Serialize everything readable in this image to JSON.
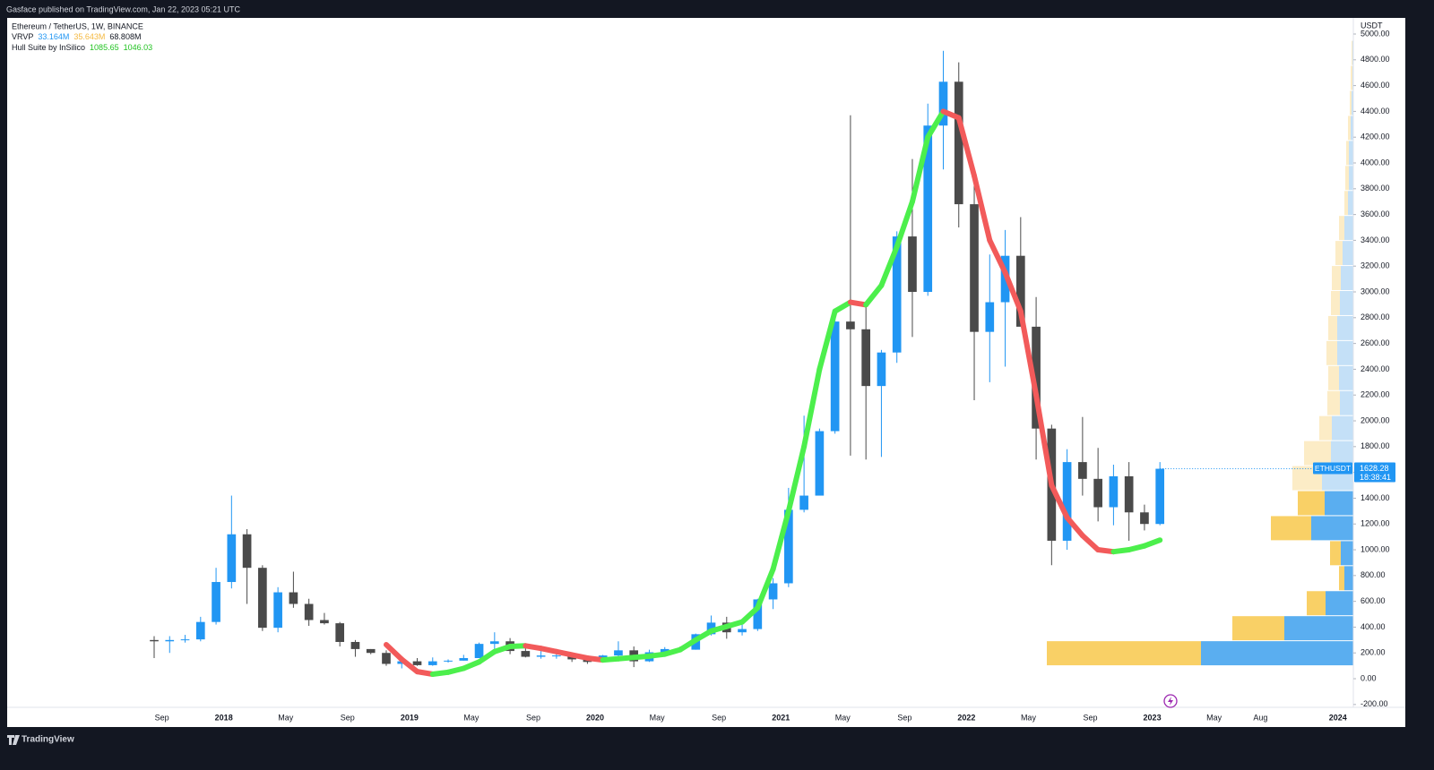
{
  "header": {
    "published": "Gasface published on TradingView.com, Jan 22, 2023 05:21 UTC"
  },
  "footer": {
    "brand": "TradingView"
  },
  "legend": {
    "symbol": "Ethereum / TetherUS, 1W, BINANCE",
    "vrvp": {
      "name": "VRVP",
      "up": "33.164M",
      "down": "35.643M",
      "total": "68.808M"
    },
    "hull": {
      "name": "Hull Suite by InSilico",
      "a": "1085.65",
      "b": "1046.03"
    }
  },
  "chart_data": {
    "type": "candlestick",
    "currency": "USDT",
    "symbol_tag": "ETHUSDT",
    "countdown": "18:38:41",
    "up_color": "#2196f3",
    "down_color": "#4a4a4a",
    "x": [
      "2017-08",
      "2017-09",
      "2017-10",
      "2017-11",
      "2017-12",
      "2018-01",
      "2018-02",
      "2018-03",
      "2018-04",
      "2018-05",
      "2018-06",
      "2018-07",
      "2018-08",
      "2018-09",
      "2018-10",
      "2018-11",
      "2018-12",
      "2019-01",
      "2019-02",
      "2019-03",
      "2019-04",
      "2019-05",
      "2019-06",
      "2019-07",
      "2019-08",
      "2019-09",
      "2019-10",
      "2019-11",
      "2019-12",
      "2020-01",
      "2020-02",
      "2020-03",
      "2020-04",
      "2020-05",
      "2020-06",
      "2020-07",
      "2020-08",
      "2020-09",
      "2020-10",
      "2020-11",
      "2020-12",
      "2021-01",
      "2021-02",
      "2021-03",
      "2021-04",
      "2021-05",
      "2021-06",
      "2021-07",
      "2021-08",
      "2021-09",
      "2021-10",
      "2021-11",
      "2021-12",
      "2022-01",
      "2022-02",
      "2022-03",
      "2022-04",
      "2022-05",
      "2022-06",
      "2022-07",
      "2022-08",
      "2022-09",
      "2022-10",
      "2022-11",
      "2022-12",
      "2023-01"
    ],
    "open": [
      300,
      290,
      300,
      305,
      440,
      750,
      1120,
      860,
      395,
      670,
      580,
      455,
      430,
      285,
      230,
      200,
      115,
      135,
      105,
      135,
      140,
      160,
      270,
      290,
      215,
      170,
      180,
      180,
      150,
      130,
      180,
      220,
      135,
      205,
      230,
      225,
      345,
      435,
      360,
      385,
      615,
      740,
      1310,
      1420,
      1920,
      2770,
      2710,
      2270,
      2530,
      3430,
      3000,
      4290,
      4630,
      3680,
      2690,
      2920,
      3280,
      2730,
      1940,
      1070,
      1680,
      1550,
      1330,
      1570,
      1290,
      1200
    ],
    "high": [
      330,
      330,
      340,
      480,
      860,
      1420,
      1160,
      880,
      710,
      830,
      620,
      510,
      440,
      300,
      230,
      220,
      160,
      160,
      165,
      150,
      185,
      280,
      360,
      315,
      240,
      230,
      200,
      195,
      155,
      185,
      290,
      250,
      225,
      245,
      250,
      350,
      490,
      480,
      420,
      620,
      780,
      1480,
      2040,
      1940,
      2800,
      4370,
      2890,
      2550,
      3470,
      4030,
      4460,
      4870,
      4780,
      3880,
      3290,
      3480,
      3580,
      2960,
      1970,
      1780,
      2030,
      1790,
      1660,
      1680,
      1350,
      1680
    ],
    "low": [
      160,
      200,
      280,
      290,
      420,
      700,
      580,
      370,
      360,
      550,
      410,
      420,
      250,
      170,
      190,
      100,
      80,
      100,
      100,
      125,
      140,
      160,
      230,
      190,
      165,
      155,
      155,
      130,
      115,
      125,
      175,
      90,
      130,
      175,
      215,
      225,
      335,
      310,
      335,
      370,
      540,
      710,
      1290,
      1440,
      1900,
      1730,
      1700,
      1720,
      2450,
      2650,
      2970,
      3950,
      3500,
      2160,
      2300,
      2420,
      2780,
      1700,
      880,
      1000,
      1420,
      1220,
      1190,
      1070,
      1150,
      1190
    ],
    "close": [
      290,
      300,
      305,
      440,
      750,
      1120,
      860,
      395,
      670,
      580,
      455,
      430,
      285,
      230,
      200,
      115,
      135,
      105,
      135,
      140,
      160,
      270,
      290,
      215,
      170,
      180,
      180,
      150,
      130,
      180,
      220,
      135,
      205,
      230,
      225,
      345,
      435,
      360,
      385,
      615,
      740,
      1310,
      1420,
      1920,
      2770,
      2710,
      2270,
      2530,
      3430,
      3000,
      4290,
      4630,
      3680,
      2690,
      2920,
      3280,
      2730,
      1940,
      1070,
      1680,
      1550,
      1330,
      1570,
      1290,
      1200,
      1628.28
    ],
    "hull": {
      "colors": [
        "#4cef4c",
        "#f25a5a"
      ],
      "x": [
        "2018-11",
        "2018-12",
        "2019-01",
        "2019-02",
        "2019-03",
        "2019-04",
        "2019-05",
        "2019-06",
        "2019-07",
        "2019-08",
        "2019-09",
        "2019-10",
        "2019-11",
        "2019-12",
        "2020-01",
        "2020-02",
        "2020-03",
        "2020-04",
        "2020-05",
        "2020-06",
        "2020-07",
        "2020-08",
        "2020-09",
        "2020-10",
        "2020-11",
        "2020-12",
        "2021-01",
        "2021-02",
        "2021-03",
        "2021-04",
        "2021-05",
        "2021-06",
        "2021-07",
        "2021-08",
        "2021-09",
        "2021-10",
        "2021-11",
        "2021-12",
        "2022-01",
        "2022-02",
        "2022-03",
        "2022-04",
        "2022-05",
        "2022-06",
        "2022-07",
        "2022-08",
        "2022-09",
        "2022-10",
        "2022-11",
        "2022-12",
        "2023-01"
      ],
      "values": [
        264,
        150,
        55,
        35,
        50,
        80,
        130,
        210,
        250,
        255,
        235,
        210,
        185,
        160,
        145,
        155,
        165,
        175,
        190,
        225,
        300,
        370,
        405,
        440,
        550,
        850,
        1300,
        1800,
        2400,
        2850,
        2920,
        2900,
        3050,
        3350,
        3700,
        4200,
        4400,
        4350,
        3900,
        3400,
        3150,
        2850,
        2200,
        1500,
        1250,
        1110,
        1000,
        985,
        1000,
        1030,
        1075
      ]
    },
    "volume_profile": {
      "colors": [
        "#5aaef0",
        "#f9d066"
      ],
      "inactive_colors": [
        "#c4e0f7",
        "#fcecc6"
      ],
      "value_area": [
        97,
        1455
      ],
      "bins": [
        97,
        291,
        485,
        679,
        873,
        1067,
        1261,
        1455,
        1649,
        1843,
        2037,
        2231,
        2425,
        2619,
        2813,
        3007,
        3201,
        3395,
        3589,
        3783,
        3977,
        4171,
        4365,
        4559,
        4753,
        4947
      ],
      "up": [
        170,
        77,
        31,
        10,
        14,
        47,
        32,
        35,
        25,
        24,
        15,
        16,
        18,
        18,
        15,
        14,
        12,
        10,
        6,
        5,
        5,
        3,
        2,
        1,
        1
      ],
      "down": [
        172,
        58,
        21,
        6,
        12,
        45,
        30,
        33,
        30,
        14,
        14,
        12,
        12,
        10,
        10,
        10,
        8,
        6,
        4,
        4,
        3,
        3,
        2,
        2,
        1
      ]
    },
    "xlim": [
      "2016-11",
      "2024-02"
    ],
    "xticks": [
      {
        "value": "2017-09",
        "label": "Sep"
      },
      {
        "value": "2018-01",
        "label": "2018"
      },
      {
        "value": "2018-05",
        "label": "May"
      },
      {
        "value": "2018-09",
        "label": "Sep"
      },
      {
        "value": "2019-01",
        "label": "2019"
      },
      {
        "value": "2019-05",
        "label": "May"
      },
      {
        "value": "2019-09",
        "label": "Sep"
      },
      {
        "value": "2020-01",
        "label": "2020"
      },
      {
        "value": "2020-05",
        "label": "May"
      },
      {
        "value": "2020-09",
        "label": "Sep"
      },
      {
        "value": "2021-01",
        "label": "2021"
      },
      {
        "value": "2021-05",
        "label": "May"
      },
      {
        "value": "2021-09",
        "label": "Sep"
      },
      {
        "value": "2022-01",
        "label": "2022"
      },
      {
        "value": "2022-05",
        "label": "May"
      },
      {
        "value": "2022-09",
        "label": "Sep"
      },
      {
        "value": "2023-01",
        "label": "2023"
      },
      {
        "value": "2023-05",
        "label": "May"
      },
      {
        "value": "2023-08",
        "label": "Aug"
      },
      {
        "value": "2024-01",
        "label": "2024"
      }
    ],
    "ylim": [
      -222,
      5125
    ],
    "yticks": [
      {
        "value": -200,
        "label": "-200.00"
      },
      {
        "value": 0,
        "label": "0.00"
      },
      {
        "value": 200,
        "label": "200.00"
      },
      {
        "value": 400,
        "label": "400.00"
      },
      {
        "value": 600,
        "label": "600.00"
      },
      {
        "value": 800,
        "label": "800.00"
      },
      {
        "value": 1000,
        "label": "1000.00"
      },
      {
        "value": 1200,
        "label": "1200.00"
      },
      {
        "value": 1400,
        "label": "1400.00"
      },
      {
        "value": 1600,
        "label": "1600.00"
      },
      {
        "value": 1800,
        "label": "1800.00"
      },
      {
        "value": 2000,
        "label": "2000.00"
      },
      {
        "value": 2200,
        "label": "2200.00"
      },
      {
        "value": 2400,
        "label": "2400.00"
      },
      {
        "value": 2600,
        "label": "2600.00"
      },
      {
        "value": 2800,
        "label": "2800.00"
      },
      {
        "value": 3000,
        "label": "3000.00"
      },
      {
        "value": 3200,
        "label": "3200.00"
      },
      {
        "value": 3400,
        "label": "3400.00"
      },
      {
        "value": 3600,
        "label": "3600.00"
      },
      {
        "value": 3800,
        "label": "3800.00"
      },
      {
        "value": 4000,
        "label": "4000.00"
      },
      {
        "value": 4200,
        "label": "4200.00"
      },
      {
        "value": 4400,
        "label": "4400.00"
      },
      {
        "value": 4600,
        "label": "4600.00"
      },
      {
        "value": 4800,
        "label": "4800.00"
      },
      {
        "value": 5000,
        "label": "5000.00"
      }
    ]
  }
}
